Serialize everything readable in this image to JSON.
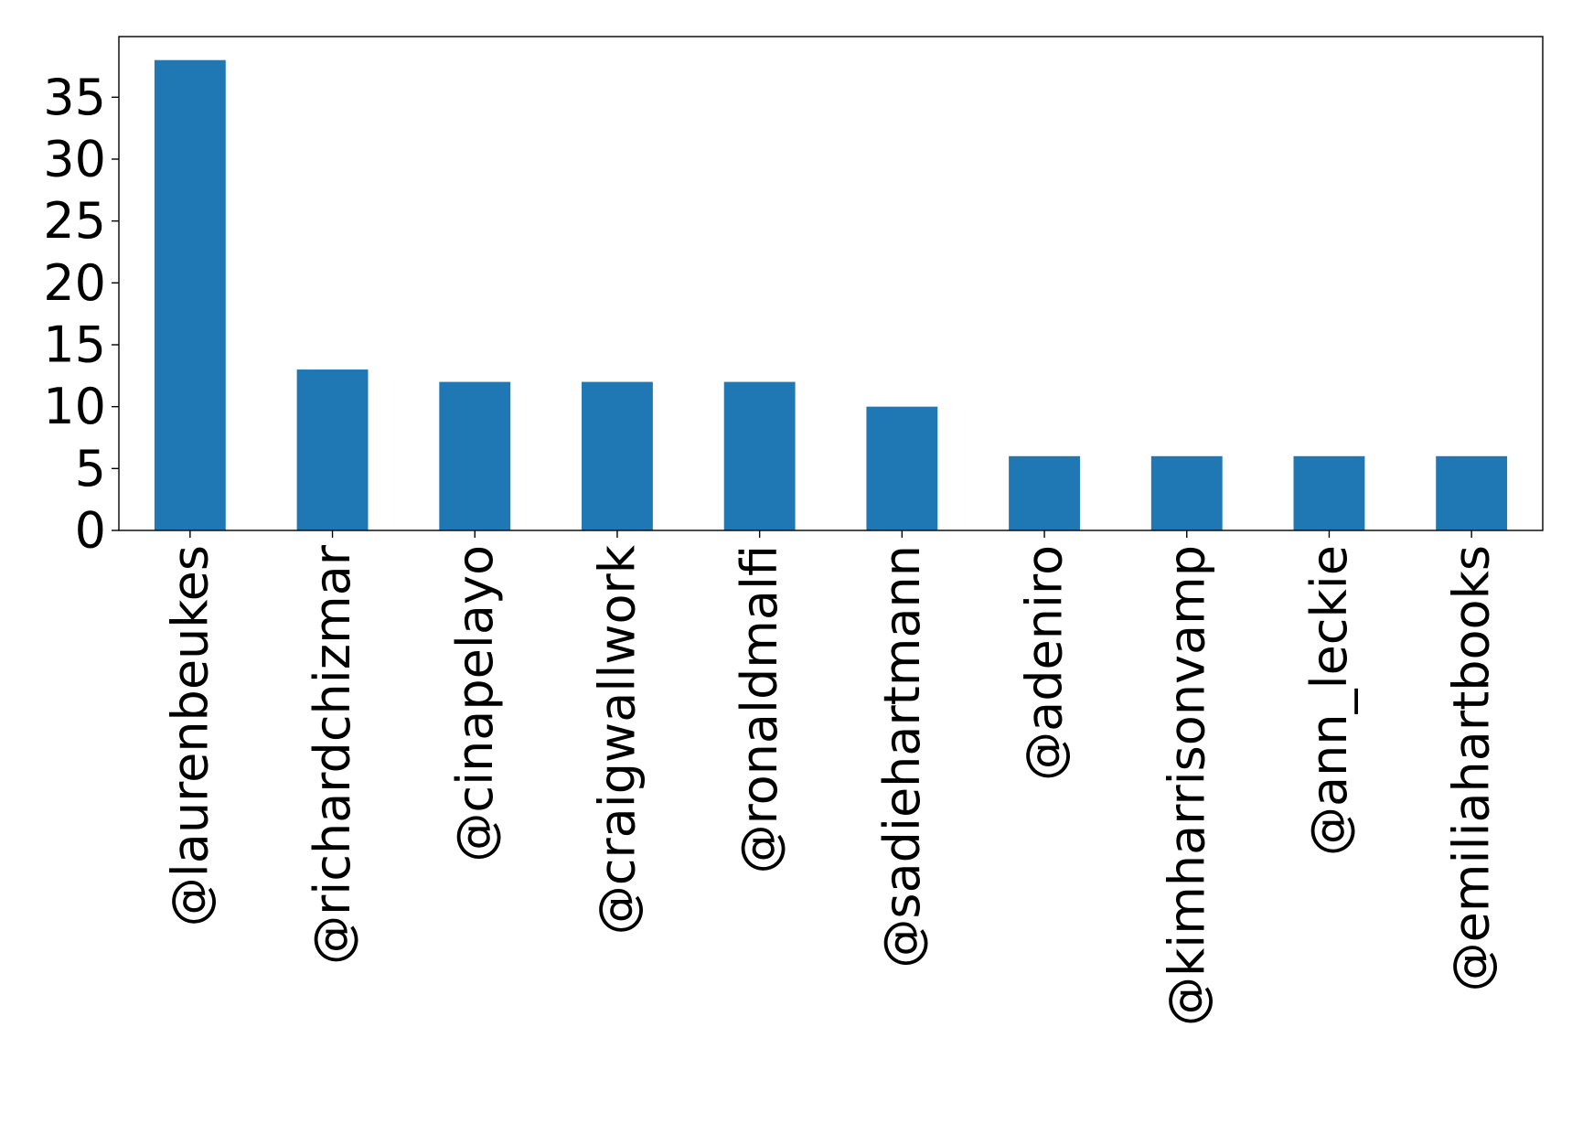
{
  "chart_data": {
    "type": "bar",
    "title": "",
    "xlabel": "",
    "ylabel": "",
    "categories": [
      "@laurenbeukes",
      "@richardchizmar",
      "@cinapelayo",
      "@craigwallwork",
      "@ronaldmalfi",
      "@sadiehartmann",
      "@adeniro",
      "@kimharrisonvamp",
      "@ann_leckie",
      "@emiliahartbooks"
    ],
    "values": [
      38,
      13,
      12,
      12,
      12,
      10,
      6,
      6,
      6,
      6
    ],
    "ylim": [
      0,
      39.9
    ],
    "yticks": [
      0,
      5,
      10,
      15,
      20,
      25,
      30,
      35
    ],
    "grid": false,
    "legend": "none",
    "bar_color": "#1f77b4"
  }
}
